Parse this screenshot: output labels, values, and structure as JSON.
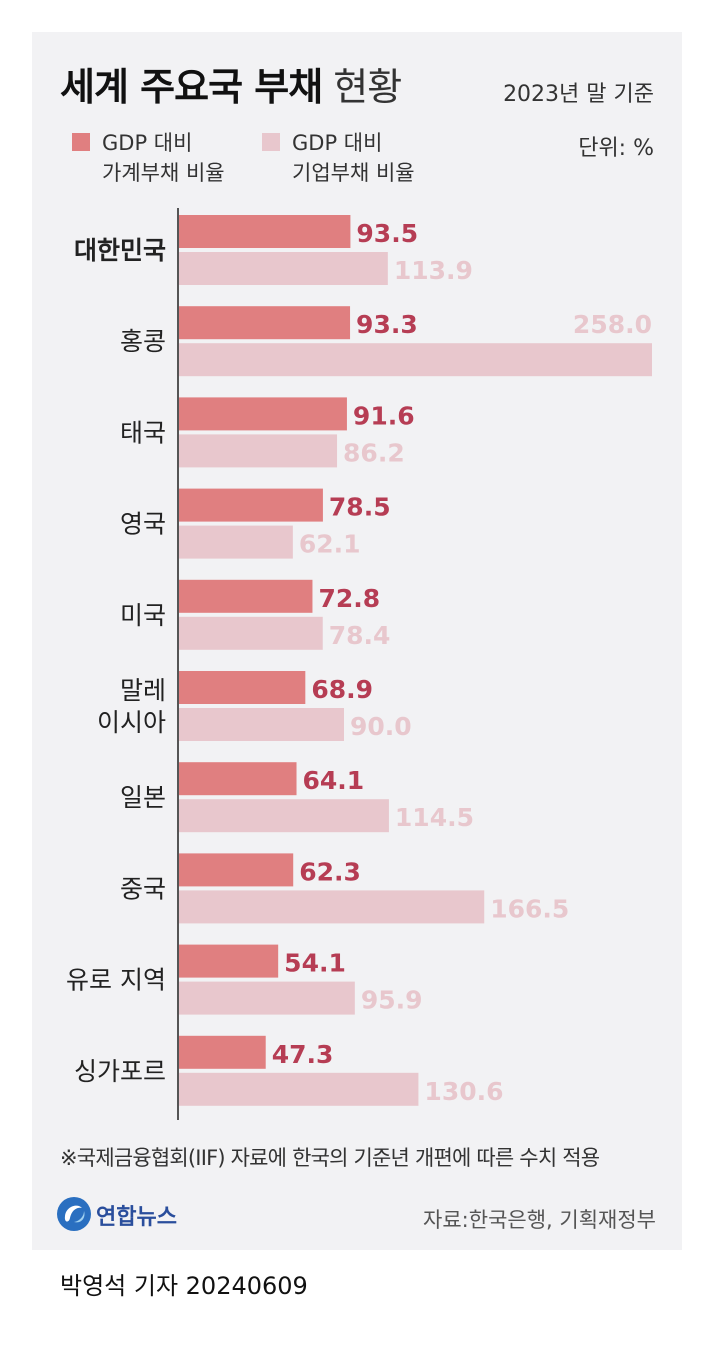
{
  "header": {
    "title_bold": "세계 주요국 부채",
    "title_light": "현황",
    "basis": "2023년 말 기준",
    "unit": "단위: %"
  },
  "legend": [
    {
      "line1": "GDP 대비",
      "line2": "가계부채 비율",
      "color": "#e07f80"
    },
    {
      "line1": "GDP 대비",
      "line2": "기업부채 비율",
      "color": "#e8c7cd"
    }
  ],
  "chart_data": {
    "type": "bar",
    "orientation": "horizontal",
    "categories": [
      [
        "대한민국"
      ],
      [
        "홍콩"
      ],
      [
        "태국"
      ],
      [
        "영국"
      ],
      [
        "미국"
      ],
      [
        "말레",
        "이시아"
      ],
      [
        "일본"
      ],
      [
        "중국"
      ],
      [
        "유로 지역"
      ],
      [
        "싱가포르"
      ]
    ],
    "highlight_category_index": 0,
    "series": [
      {
        "name": "GDP 대비 가계부채 비율",
        "color": "#e07f80",
        "label_color": "#b63d54",
        "values": [
          93.5,
          93.3,
          91.6,
          78.5,
          72.8,
          68.9,
          64.1,
          62.3,
          54.1,
          47.3
        ]
      },
      {
        "name": "GDP 대비 기업부채 비율",
        "color": "#e8c7cd",
        "label_color": "#e8c7cd",
        "values": [
          113.9,
          258.0,
          86.2,
          62.1,
          78.4,
          90.0,
          114.5,
          166.5,
          95.9,
          130.6
        ]
      }
    ],
    "xlim": [
      0,
      258.0
    ],
    "grid": false,
    "legend_position": "top-left"
  },
  "footer": {
    "footnote": "※국제금융협회(IIF) 자료에 한국의 기준년 개편에 따른 수치 적용",
    "logo_text": "연합뉴스",
    "source": "자료:한국은행, 기획재정부",
    "byline": "박영석 기자 20240609"
  }
}
